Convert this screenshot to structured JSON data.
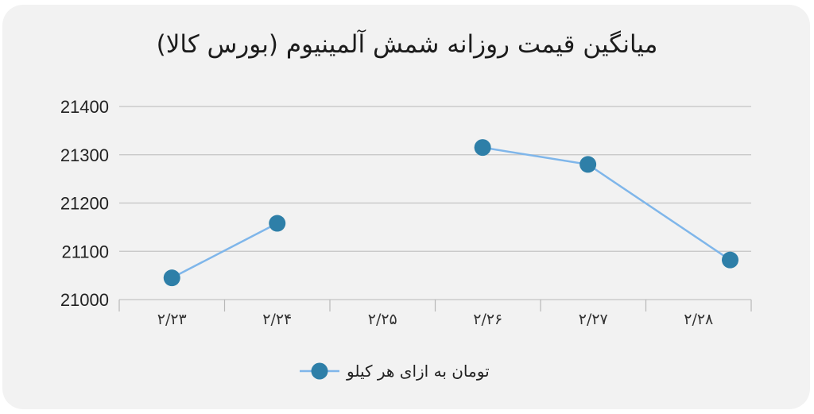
{
  "chart_data": {
    "type": "line",
    "title": "میانگین قیمت روزانه شمش آلمینیوم (بورس کالا)",
    "categories": [
      "۲/۲۳",
      "۲/۲۴",
      "۲/۲۵",
      "۲/۲۶",
      "۲/۲۷",
      "۲/۲۸"
    ],
    "series": [
      {
        "name": "تومان به ازای هر کیلو",
        "color": "#2e7fa8",
        "line_color": "#7fb6ea",
        "points": [
          {
            "x": 0,
            "y": 21045
          },
          {
            "x": 1,
            "y": 21158
          },
          {
            "x": 2.95,
            "y": 21315
          },
          {
            "x": 3.95,
            "y": 21280
          },
          {
            "x": 5.3,
            "y": 21082
          }
        ],
        "segments": [
          [
            0,
            1
          ],
          [
            2,
            3,
            4
          ]
        ]
      }
    ],
    "ylim": [
      21000,
      21400
    ],
    "yticks": [
      "21000",
      "21100",
      "21200",
      "21300",
      "21400"
    ],
    "xlabel": "",
    "ylabel": "",
    "grid": true,
    "legend_position": "bottom"
  }
}
